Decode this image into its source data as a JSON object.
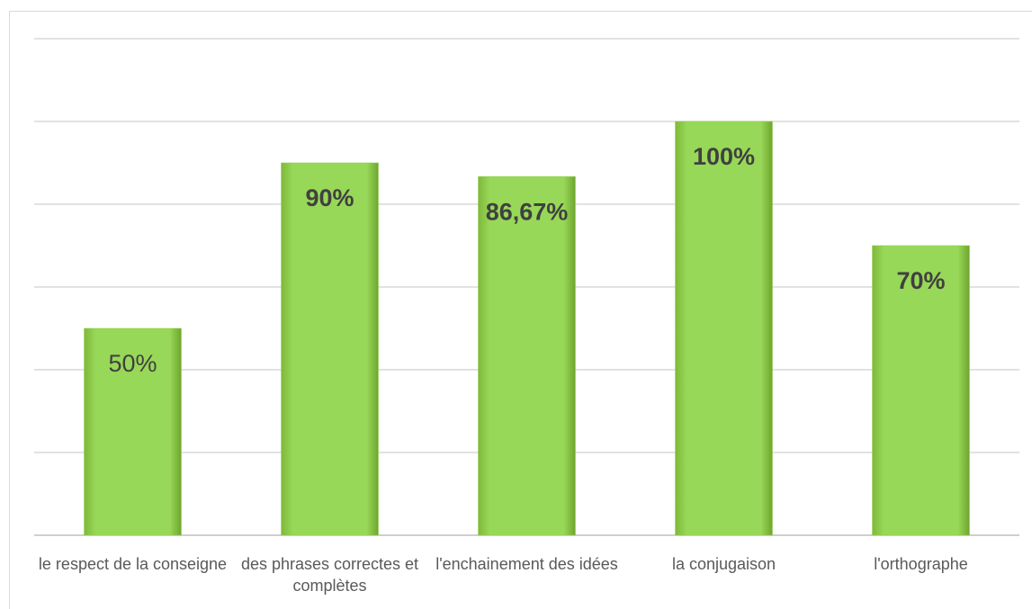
{
  "chart_data": {
    "type": "bar",
    "categories": [
      "le respect de la conseigne",
      "des phrases correctes et complètes",
      "l'enchainement des idées",
      "la conjugaison",
      "l'orthographe"
    ],
    "values": [
      50,
      90,
      86.67,
      100,
      70
    ],
    "value_labels": [
      "50%",
      "90%",
      "86,67%",
      "100%",
      "70%"
    ],
    "color": "#92d050",
    "ylim": [
      0,
      120
    ],
    "yticks": [
      0,
      20,
      40,
      60,
      80,
      100,
      120
    ],
    "grid": true
  }
}
